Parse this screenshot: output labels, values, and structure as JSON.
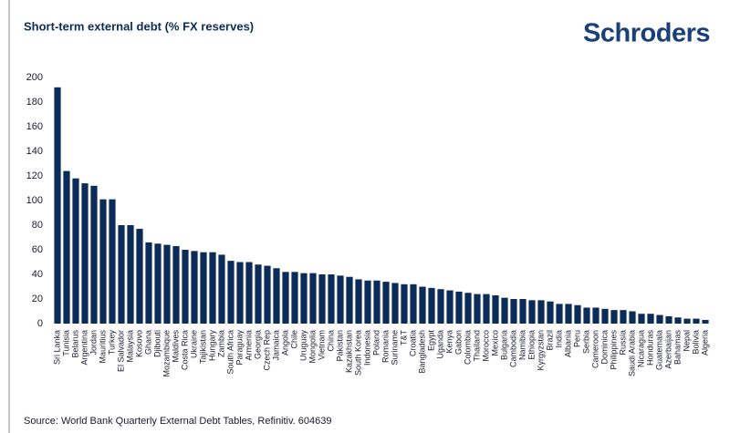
{
  "brand": "Schroders",
  "chart_data": {
    "type": "bar",
    "title": "Short-term external debt (% FX reserves)",
    "source": "Source: World Bank Quarterly External Debt Tables, Refinitiv. 604639",
    "categories": [
      "Sri Lanka",
      "Tunisia",
      "Belarus",
      "Argentina",
      "Jordan",
      "Mauritius",
      "Turkey",
      "El Salvador",
      "Malaysia",
      "Kosovo",
      "Ghana",
      "Djibouti",
      "Mozambique",
      "Maldives",
      "Costa Rica",
      "Ukraine",
      "Tajikistan",
      "Hungary",
      "Zambia",
      "South Africa",
      "Paraguay",
      "Armenia",
      "Georgia",
      "Czech Rep",
      "Jamaica",
      "Angola",
      "Chile",
      "Uruguay",
      "Mongolia",
      "Vietnam",
      "China",
      "Pakistan",
      "Kazakhstan",
      "South Korea",
      "Indonesia",
      "Poland",
      "Romania",
      "Suriname",
      "T&T",
      "Croatia",
      "Bangladesh",
      "Egypt",
      "Uganda",
      "Kenya",
      "Gabon",
      "Colombia",
      "Thailand",
      "Morocco",
      "Mexico",
      "Bulgaria",
      "Cambodia",
      "Namibia",
      "Ethiopia",
      "Kyrgyzstan",
      "Brazil",
      "India",
      "Albania",
      "Peru",
      "Serbia",
      "Cameroon",
      "Dominica",
      "Philippines",
      "Russia",
      "Saudi Arabia",
      "Nicaragua",
      "Honduras",
      "Guatemala",
      "Azerbaijan",
      "Bahamas",
      "Nepal",
      "Bolivia",
      "Algeria"
    ],
    "values": [
      192,
      124,
      118,
      114,
      112,
      101,
      101,
      80,
      80,
      77,
      66,
      65,
      64,
      63,
      60,
      59,
      58,
      58,
      56,
      51,
      50,
      50,
      48,
      47,
      45,
      42,
      42,
      41,
      41,
      40,
      40,
      39,
      38,
      36,
      35,
      35,
      34,
      33,
      32,
      32,
      30,
      29,
      28,
      27,
      26,
      25,
      24,
      24,
      23,
      21,
      20,
      20,
      19,
      19,
      18,
      16,
      16,
      15,
      13,
      13,
      12,
      11,
      11,
      10,
      8,
      8,
      7,
      6,
      5,
      4,
      4,
      3
    ],
    "color": "#0b2c5a",
    "ylim": [
      0,
      200
    ],
    "yticks": [
      0,
      20,
      40,
      60,
      80,
      100,
      120,
      140,
      160,
      180,
      200
    ],
    "grid": false
  }
}
